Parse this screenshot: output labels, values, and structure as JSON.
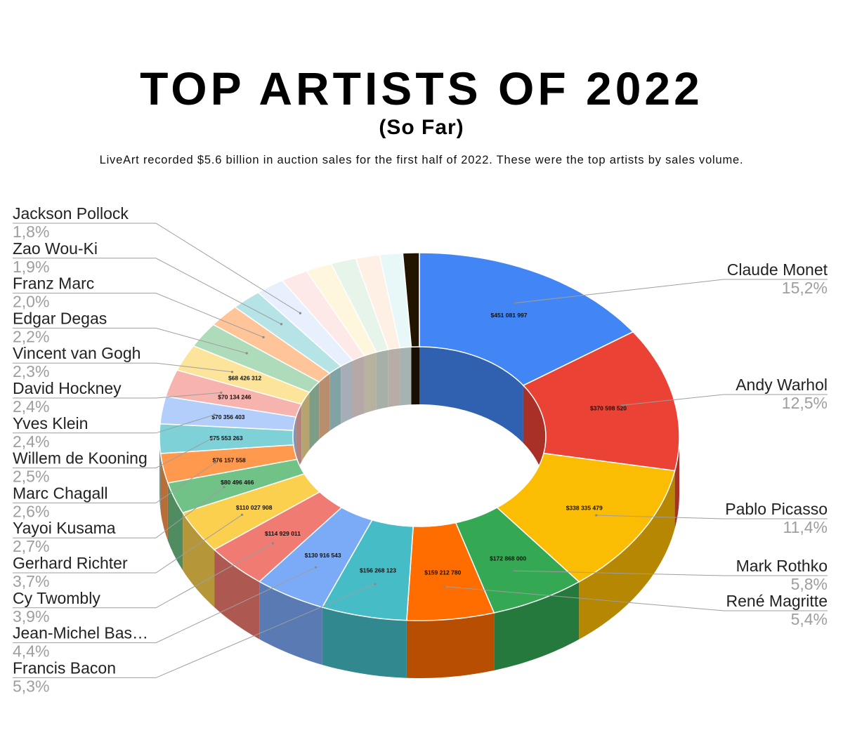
{
  "header": {
    "title": "TOP ARTISTS OF 2022",
    "subtitle": "(So Far)",
    "description": "LiveArt recorded $5.6 billion in auction sales for the first half of 2022. These were the top artists by sales volume."
  },
  "chart_data": {
    "type": "pie",
    "variant": "3d-donut",
    "title": "TOP ARTISTS OF 2022",
    "subtitle": "(So Far)",
    "slices": [
      {
        "label": "Claude Monet",
        "value": 451081997,
        "value_label": "$451 081 997",
        "percent_label": "15,2%",
        "color": "#4285f4",
        "side": "right"
      },
      {
        "label": "Andy Warhol",
        "value": 370598520,
        "value_label": "$370 598 520",
        "percent_label": "12,5%",
        "color": "#ea4335",
        "side": "right"
      },
      {
        "label": "Pablo Picasso",
        "value": 338335479,
        "value_label": "$338 335 479",
        "percent_label": "11,4%",
        "color": "#fbbc04",
        "side": "right"
      },
      {
        "label": "Mark Rothko",
        "value": 172868000,
        "value_label": "$172 868 000",
        "percent_label": "5,8%",
        "color": "#34a853",
        "side": "right"
      },
      {
        "label": "René Magritte",
        "value": 159212780,
        "value_label": "$159 212 780",
        "percent_label": "5,4%",
        "color": "#ff6d01",
        "side": "right"
      },
      {
        "label": "Francis Bacon",
        "value": 156268123,
        "value_label": "$156 268 123",
        "percent_label": "5,3%",
        "color": "#46bdc6",
        "side": "left"
      },
      {
        "label": "Jean-Michel Bas…",
        "value": 130916543,
        "value_label": "$130 916 543",
        "percent_label": "4,4%",
        "color": "#7baaf7",
        "side": "left"
      },
      {
        "label": "Cy Twombly",
        "value": 114929011,
        "value_label": "$114 929 011",
        "percent_label": "3,9%",
        "color": "#f07b72",
        "side": "left"
      },
      {
        "label": "Gerhard Richter",
        "value": 110027908,
        "value_label": "$110 027 908",
        "percent_label": "3,7%",
        "color": "#fcd04f",
        "side": "left"
      },
      {
        "label": "Yayoi Kusama",
        "value": 80496466,
        "value_label": "$80 496 466",
        "percent_label": "2,7%",
        "color": "#71c287",
        "side": "left"
      },
      {
        "label": "Marc Chagall",
        "value": 76157558,
        "value_label": "$76 157 558",
        "percent_label": "2,6%",
        "color": "#ff994d",
        "side": "left"
      },
      {
        "label": "Willem de Kooning",
        "value": 75553263,
        "value_label": "$75 553 263",
        "percent_label": "2,5%",
        "color": "#7ed1d7",
        "side": "left"
      },
      {
        "label": "Yves Klein",
        "value": 70356403,
        "value_label": "$70 356 403",
        "percent_label": "2,4%",
        "color": "#b3cefb",
        "side": "left"
      },
      {
        "label": "David Hockney",
        "value": 70134246,
        "value_label": "$70 134 246",
        "percent_label": "2,4%",
        "color": "#f7b4ae",
        "side": "left"
      },
      {
        "label": "Vincent van Gogh",
        "value": 68426312,
        "value_label": "$68 426 312",
        "percent_label": "2,3%",
        "color": "#fde49b",
        "side": "left"
      },
      {
        "label": "Edgar Degas",
        "value": 65000000,
        "value_label": "",
        "percent_label": "2,2%",
        "color": "#aedcba",
        "side": "left"
      },
      {
        "label": "Franz Marc",
        "value": 59000000,
        "value_label": "",
        "percent_label": "2,0%",
        "color": "#ffc599",
        "side": "left"
      },
      {
        "label": "Zao Wou-Ki",
        "value": 56000000,
        "value_label": "",
        "percent_label": "1,9%",
        "color": "#b5e3e6",
        "side": "left"
      },
      {
        "label": "Jackson Pollock",
        "value": 53000000,
        "value_label": "",
        "percent_label": "1,8%",
        "color": "#e8f0fe",
        "side": "left"
      },
      {
        "label": "",
        "value": 50000000,
        "value_label": "",
        "percent_label": "",
        "color": "#fde9e7",
        "side": "none"
      },
      {
        "label": "",
        "value": 48000000,
        "value_label": "",
        "percent_label": "",
        "color": "#fef6dd",
        "side": "none"
      },
      {
        "label": "",
        "value": 46000000,
        "value_label": "",
        "percent_label": "",
        "color": "#e6f4ea",
        "side": "none"
      },
      {
        "label": "",
        "value": 44000000,
        "value_label": "",
        "percent_label": "",
        "color": "#fff0e6",
        "side": "none"
      },
      {
        "label": "",
        "value": 42000000,
        "value_label": "",
        "percent_label": "",
        "color": "#e8f7f8",
        "side": "none"
      },
      {
        "label": "",
        "value": 30000000,
        "value_label": "",
        "percent_label": "",
        "color": "#211500",
        "side": "none"
      }
    ],
    "legend": "none",
    "labels_position": "outside-both-sides"
  }
}
